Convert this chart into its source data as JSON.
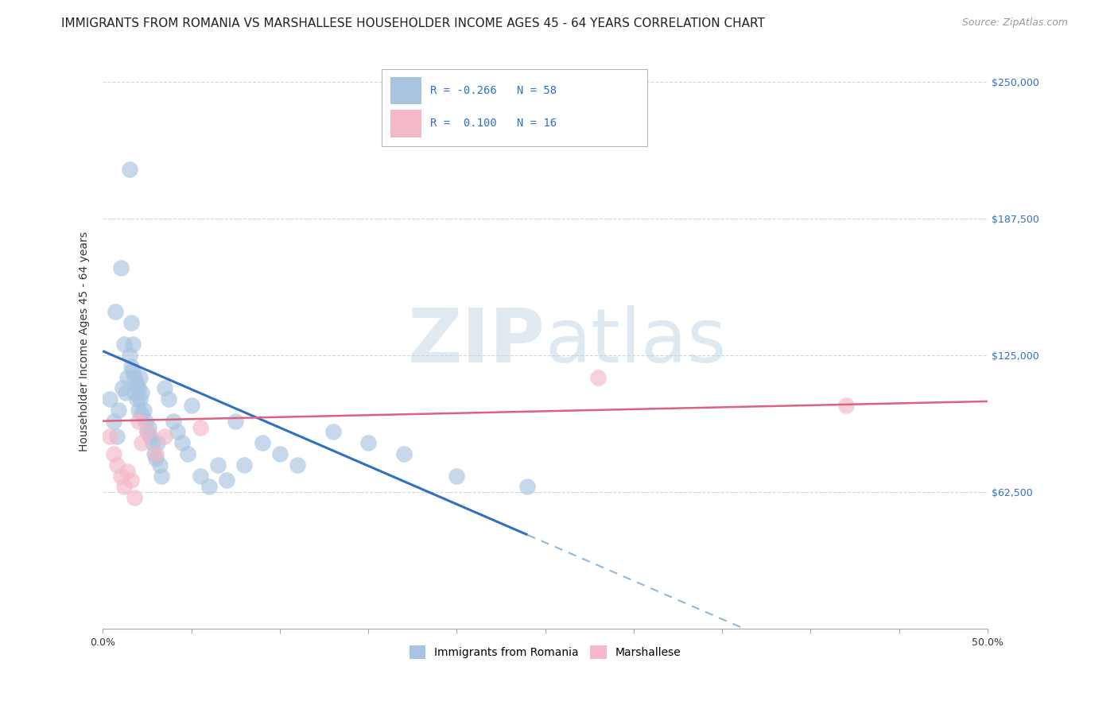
{
  "title": "IMMIGRANTS FROM ROMANIA VS MARSHALLESE HOUSEHOLDER INCOME AGES 45 - 64 YEARS CORRELATION CHART",
  "source": "Source: ZipAtlas.com",
  "ylabel": "Householder Income Ages 45 - 64 years",
  "xmin": 0.0,
  "xmax": 0.5,
  "ymin": 0,
  "ymax": 262500,
  "yticks": [
    0,
    62500,
    125000,
    187500,
    250000
  ],
  "ytick_labels": [
    "$62,500",
    "$125,000",
    "$187,500",
    "$250,000"
  ],
  "xticks": [
    0.0,
    0.05,
    0.1,
    0.15,
    0.2,
    0.25,
    0.3,
    0.35,
    0.4,
    0.45,
    0.5
  ],
  "xtick_labels_show": [
    "0.0%",
    "",
    "",
    "",
    "",
    "",
    "",
    "",
    "",
    "",
    "50.0%"
  ],
  "legend_labels": [
    "Immigrants from Romania",
    "Marshallese"
  ],
  "legend_R": [
    -0.266,
    0.1
  ],
  "legend_N": [
    58,
    16
  ],
  "scatter_color_romania": "#a8c4e0",
  "scatter_color_marshallese": "#f4b8c8",
  "line_color_romania": "#3070c0",
  "line_color_marshallese": "#e06080",
  "line_color_romania_dash": "#90b8d8",
  "background_color": "#ffffff",
  "grid_color": "#cccccc",
  "romania_x": [
    0.004,
    0.006,
    0.007,
    0.008,
    0.009,
    0.01,
    0.011,
    0.012,
    0.013,
    0.014,
    0.015,
    0.015,
    0.016,
    0.016,
    0.017,
    0.017,
    0.018,
    0.018,
    0.019,
    0.019,
    0.02,
    0.02,
    0.021,
    0.021,
    0.022,
    0.022,
    0.023,
    0.024,
    0.025,
    0.026,
    0.027,
    0.028,
    0.029,
    0.03,
    0.031,
    0.032,
    0.033,
    0.035,
    0.037,
    0.04,
    0.042,
    0.045,
    0.048,
    0.05,
    0.055,
    0.06,
    0.065,
    0.07,
    0.075,
    0.08,
    0.09,
    0.1,
    0.11,
    0.13,
    0.15,
    0.17,
    0.2,
    0.24
  ],
  "romania_y": [
    105000,
    95000,
    145000,
    88000,
    100000,
    165000,
    110000,
    130000,
    108000,
    115000,
    210000,
    125000,
    120000,
    140000,
    118000,
    130000,
    115000,
    108000,
    112000,
    105000,
    110000,
    100000,
    115000,
    105000,
    108000,
    98000,
    100000,
    95000,
    90000,
    92000,
    88000,
    85000,
    80000,
    78000,
    85000,
    75000,
    70000,
    110000,
    105000,
    95000,
    90000,
    85000,
    80000,
    102000,
    70000,
    65000,
    75000,
    68000,
    95000,
    75000,
    85000,
    80000,
    75000,
    90000,
    85000,
    80000,
    70000,
    65000
  ],
  "marshallese_x": [
    0.004,
    0.006,
    0.008,
    0.01,
    0.012,
    0.014,
    0.016,
    0.018,
    0.02,
    0.022,
    0.025,
    0.03,
    0.035,
    0.055,
    0.28,
    0.42
  ],
  "marshallese_y": [
    88000,
    80000,
    75000,
    70000,
    65000,
    72000,
    68000,
    60000,
    95000,
    85000,
    90000,
    80000,
    88000,
    92000,
    115000,
    102000
  ],
  "rom_line_x0": 0.0,
  "rom_line_y0": 127000,
  "rom_line_slope": -350000,
  "rom_line_solid_end": 0.24,
  "rom_line_dash_end": 0.5,
  "marsh_line_x0": 0.0,
  "marsh_line_y0": 95000,
  "marsh_line_slope": 18000,
  "watermark_zip": "ZIP",
  "watermark_atlas": "atlas",
  "title_fontsize": 11,
  "axis_label_fontsize": 10,
  "tick_fontsize": 9,
  "legend_fontsize": 10,
  "source_fontsize": 9
}
